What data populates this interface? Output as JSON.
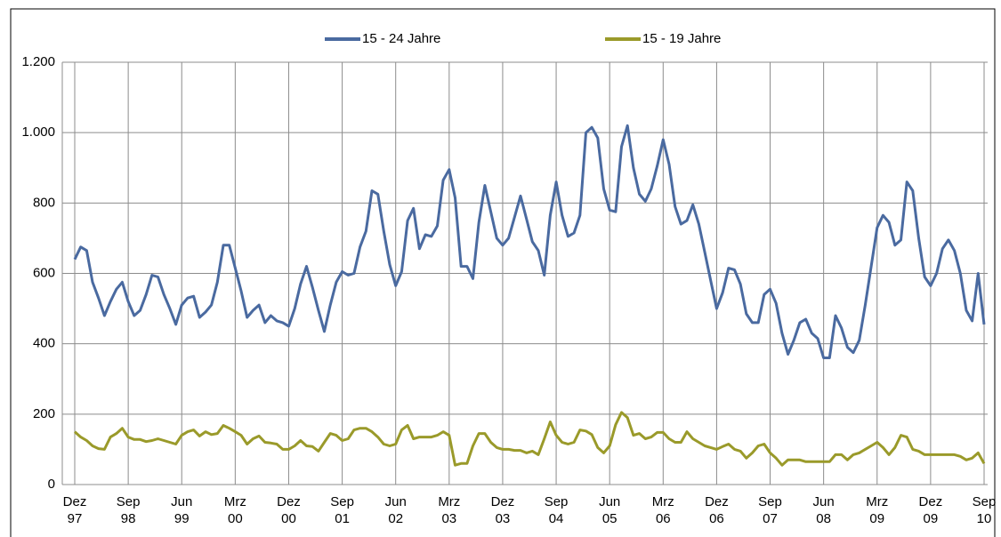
{
  "chart_data": {
    "type": "line",
    "categories": [
      "Dez 97",
      null,
      null,
      null,
      null,
      null,
      null,
      null,
      null,
      "Sep 98",
      null,
      null,
      null,
      null,
      null,
      null,
      null,
      null,
      "Jun 99",
      null,
      null,
      null,
      null,
      null,
      null,
      null,
      null,
      "Mrz 00",
      null,
      null,
      null,
      null,
      null,
      null,
      null,
      null,
      "Dez 00",
      null,
      null,
      null,
      null,
      null,
      null,
      null,
      null,
      "Sep 01",
      null,
      null,
      null,
      null,
      null,
      null,
      null,
      null,
      "Jun 02",
      null,
      null,
      null,
      null,
      null,
      null,
      null,
      null,
      "Mrz 03",
      null,
      null,
      null,
      null,
      null,
      null,
      null,
      null,
      "Dez 03",
      null,
      null,
      null,
      null,
      null,
      null,
      null,
      null,
      "Sep 04",
      null,
      null,
      null,
      null,
      null,
      null,
      null,
      null,
      "Jun 05",
      null,
      null,
      null,
      null,
      null,
      null,
      null,
      null,
      "Mrz 06",
      null,
      null,
      null,
      null,
      null,
      null,
      null,
      null,
      "Dez 06",
      null,
      null,
      null,
      null,
      null,
      null,
      null,
      null,
      "Sep 07",
      null,
      null,
      null,
      null,
      null,
      null,
      null,
      null,
      "Jun 08",
      null,
      null,
      null,
      null,
      null,
      null,
      null,
      null,
      "Mrz 09",
      null,
      null,
      null,
      null,
      null,
      null,
      null,
      null,
      "Dez 09",
      null,
      null,
      null,
      null,
      null,
      null,
      null,
      null,
      "Sep 10"
    ],
    "series": [
      {
        "name": "15 - 24 Jahre",
        "color": "#4a6aa0",
        "values": [
          640,
          675,
          665,
          575,
          530,
          480,
          520,
          555,
          575,
          520,
          480,
          495,
          540,
          595,
          590,
          540,
          500,
          455,
          510,
          530,
          535,
          475,
          490,
          510,
          575,
          680,
          680,
          615,
          550,
          475,
          495,
          510,
          460,
          480,
          465,
          460,
          450,
          500,
          570,
          620,
          560,
          495,
          435,
          510,
          575,
          605,
          595,
          600,
          675,
          720,
          835,
          825,
          720,
          625,
          565,
          605,
          750,
          785,
          670,
          710,
          705,
          735,
          865,
          895,
          815,
          620,
          620,
          585,
          745,
          850,
          775,
          700,
          680,
          700,
          760,
          820,
          755,
          690,
          665,
          595,
          765,
          860,
          765,
          705,
          715,
          765,
          1000,
          1015,
          985,
          840,
          780,
          775,
          960,
          1020,
          900,
          825,
          805,
          840,
          905,
          980,
          910,
          790,
          740,
          750,
          795,
          740,
          660,
          580,
          500,
          545,
          615,
          610,
          570,
          485,
          460,
          460,
          540,
          555,
          515,
          430,
          370,
          410,
          460,
          470,
          430,
          415,
          360,
          360,
          480,
          445,
          390,
          375,
          410,
          510,
          620,
          730,
          765,
          745,
          680,
          695,
          860,
          835,
          700,
          590,
          565,
          600,
          670,
          695,
          665,
          600,
          495,
          465,
          600,
          455
        ]
      },
      {
        "name": "15 - 19 Jahre",
        "color": "#9a9a2a",
        "values": [
          150,
          135,
          125,
          110,
          102,
          100,
          135,
          145,
          160,
          135,
          128,
          128,
          122,
          125,
          130,
          125,
          120,
          115,
          140,
          150,
          155,
          138,
          150,
          142,
          145,
          168,
          160,
          150,
          140,
          115,
          130,
          138,
          120,
          118,
          115,
          100,
          100,
          110,
          125,
          110,
          108,
          95,
          120,
          145,
          140,
          125,
          130,
          155,
          160,
          160,
          150,
          135,
          115,
          110,
          115,
          155,
          168,
          130,
          135,
          135,
          135,
          140,
          150,
          140,
          55,
          60,
          60,
          110,
          145,
          145,
          120,
          105,
          100,
          100,
          97,
          97,
          90,
          95,
          85,
          130,
          178,
          140,
          120,
          115,
          120,
          155,
          152,
          142,
          105,
          90,
          110,
          170,
          205,
          190,
          140,
          145,
          130,
          135,
          148,
          148,
          130,
          120,
          120,
          150,
          130,
          120,
          110,
          105,
          100,
          108,
          115,
          100,
          95,
          75,
          90,
          110,
          115,
          90,
          75,
          55,
          70,
          70,
          70,
          65,
          65,
          65,
          65,
          65,
          85,
          85,
          70,
          85,
          90,
          100,
          110,
          120,
          105,
          85,
          105,
          140,
          135,
          100,
          95,
          85,
          85,
          85,
          85,
          85,
          85,
          80,
          70,
          75,
          90,
          60
        ]
      }
    ],
    "ylim": [
      0,
      1200
    ],
    "yticks": [
      0,
      200,
      400,
      600,
      800,
      {
        "value": 1000,
        "label": "1.000"
      },
      {
        "value": 1200,
        "label": "1.200"
      }
    ],
    "grid": true,
    "legend": "top"
  }
}
